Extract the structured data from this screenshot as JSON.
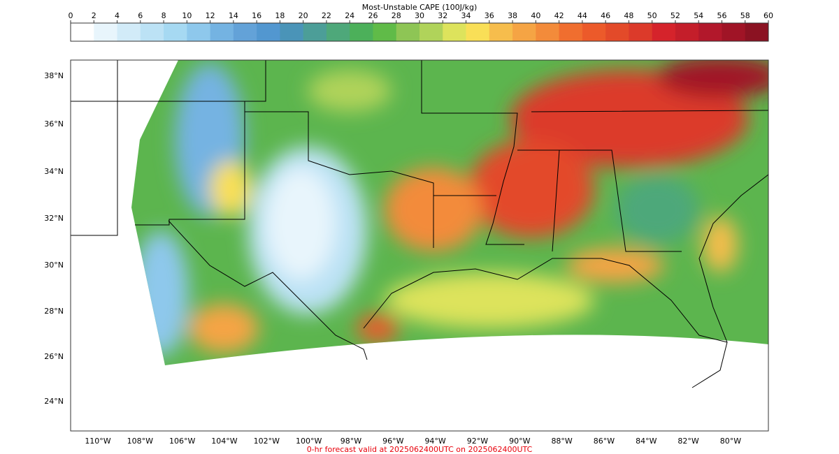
{
  "colorbar": {
    "title": "Most-Unstable CAPE (100J/kg)",
    "ticks": [
      0,
      2,
      4,
      6,
      8,
      10,
      12,
      14,
      16,
      18,
      20,
      22,
      24,
      26,
      28,
      30,
      32,
      34,
      36,
      38,
      40,
      42,
      44,
      46,
      48,
      50,
      52,
      54,
      56,
      58,
      60
    ],
    "colors": [
      "#ffffff",
      "#e8f5fc",
      "#d2ebf8",
      "#bce2f5",
      "#a6d9f2",
      "#8ec8ec",
      "#74b3e2",
      "#63a2d8",
      "#5297d0",
      "#4a94b8",
      "#4c9e98",
      "#4ea87a",
      "#4cb05a",
      "#60bb48",
      "#8ec555",
      "#b0d35a",
      "#dde35c",
      "#f9df57",
      "#f6bd4c",
      "#f5a444",
      "#f38b3a",
      "#f06e2f",
      "#ec5a2a",
      "#e34a29",
      "#dc3a2a",
      "#d5232b",
      "#c41e2a",
      "#b2182b",
      "#a01426",
      "#8b1222"
    ]
  },
  "map": {
    "lat_labels": [
      "38°N",
      "36°N",
      "34°N",
      "32°N",
      "30°N",
      "28°N",
      "26°N",
      "24°N"
    ],
    "lon_labels": [
      "110°W",
      "108°W",
      "106°W",
      "104°W",
      "102°W",
      "100°W",
      "98°W",
      "96°W",
      "94°W",
      "92°W",
      "90°W",
      "88°W",
      "86°W",
      "84°W",
      "82°W",
      "80°W"
    ]
  },
  "footer": "0-hr forecast valid at 2025062400UTC on 2025062400UTC"
}
